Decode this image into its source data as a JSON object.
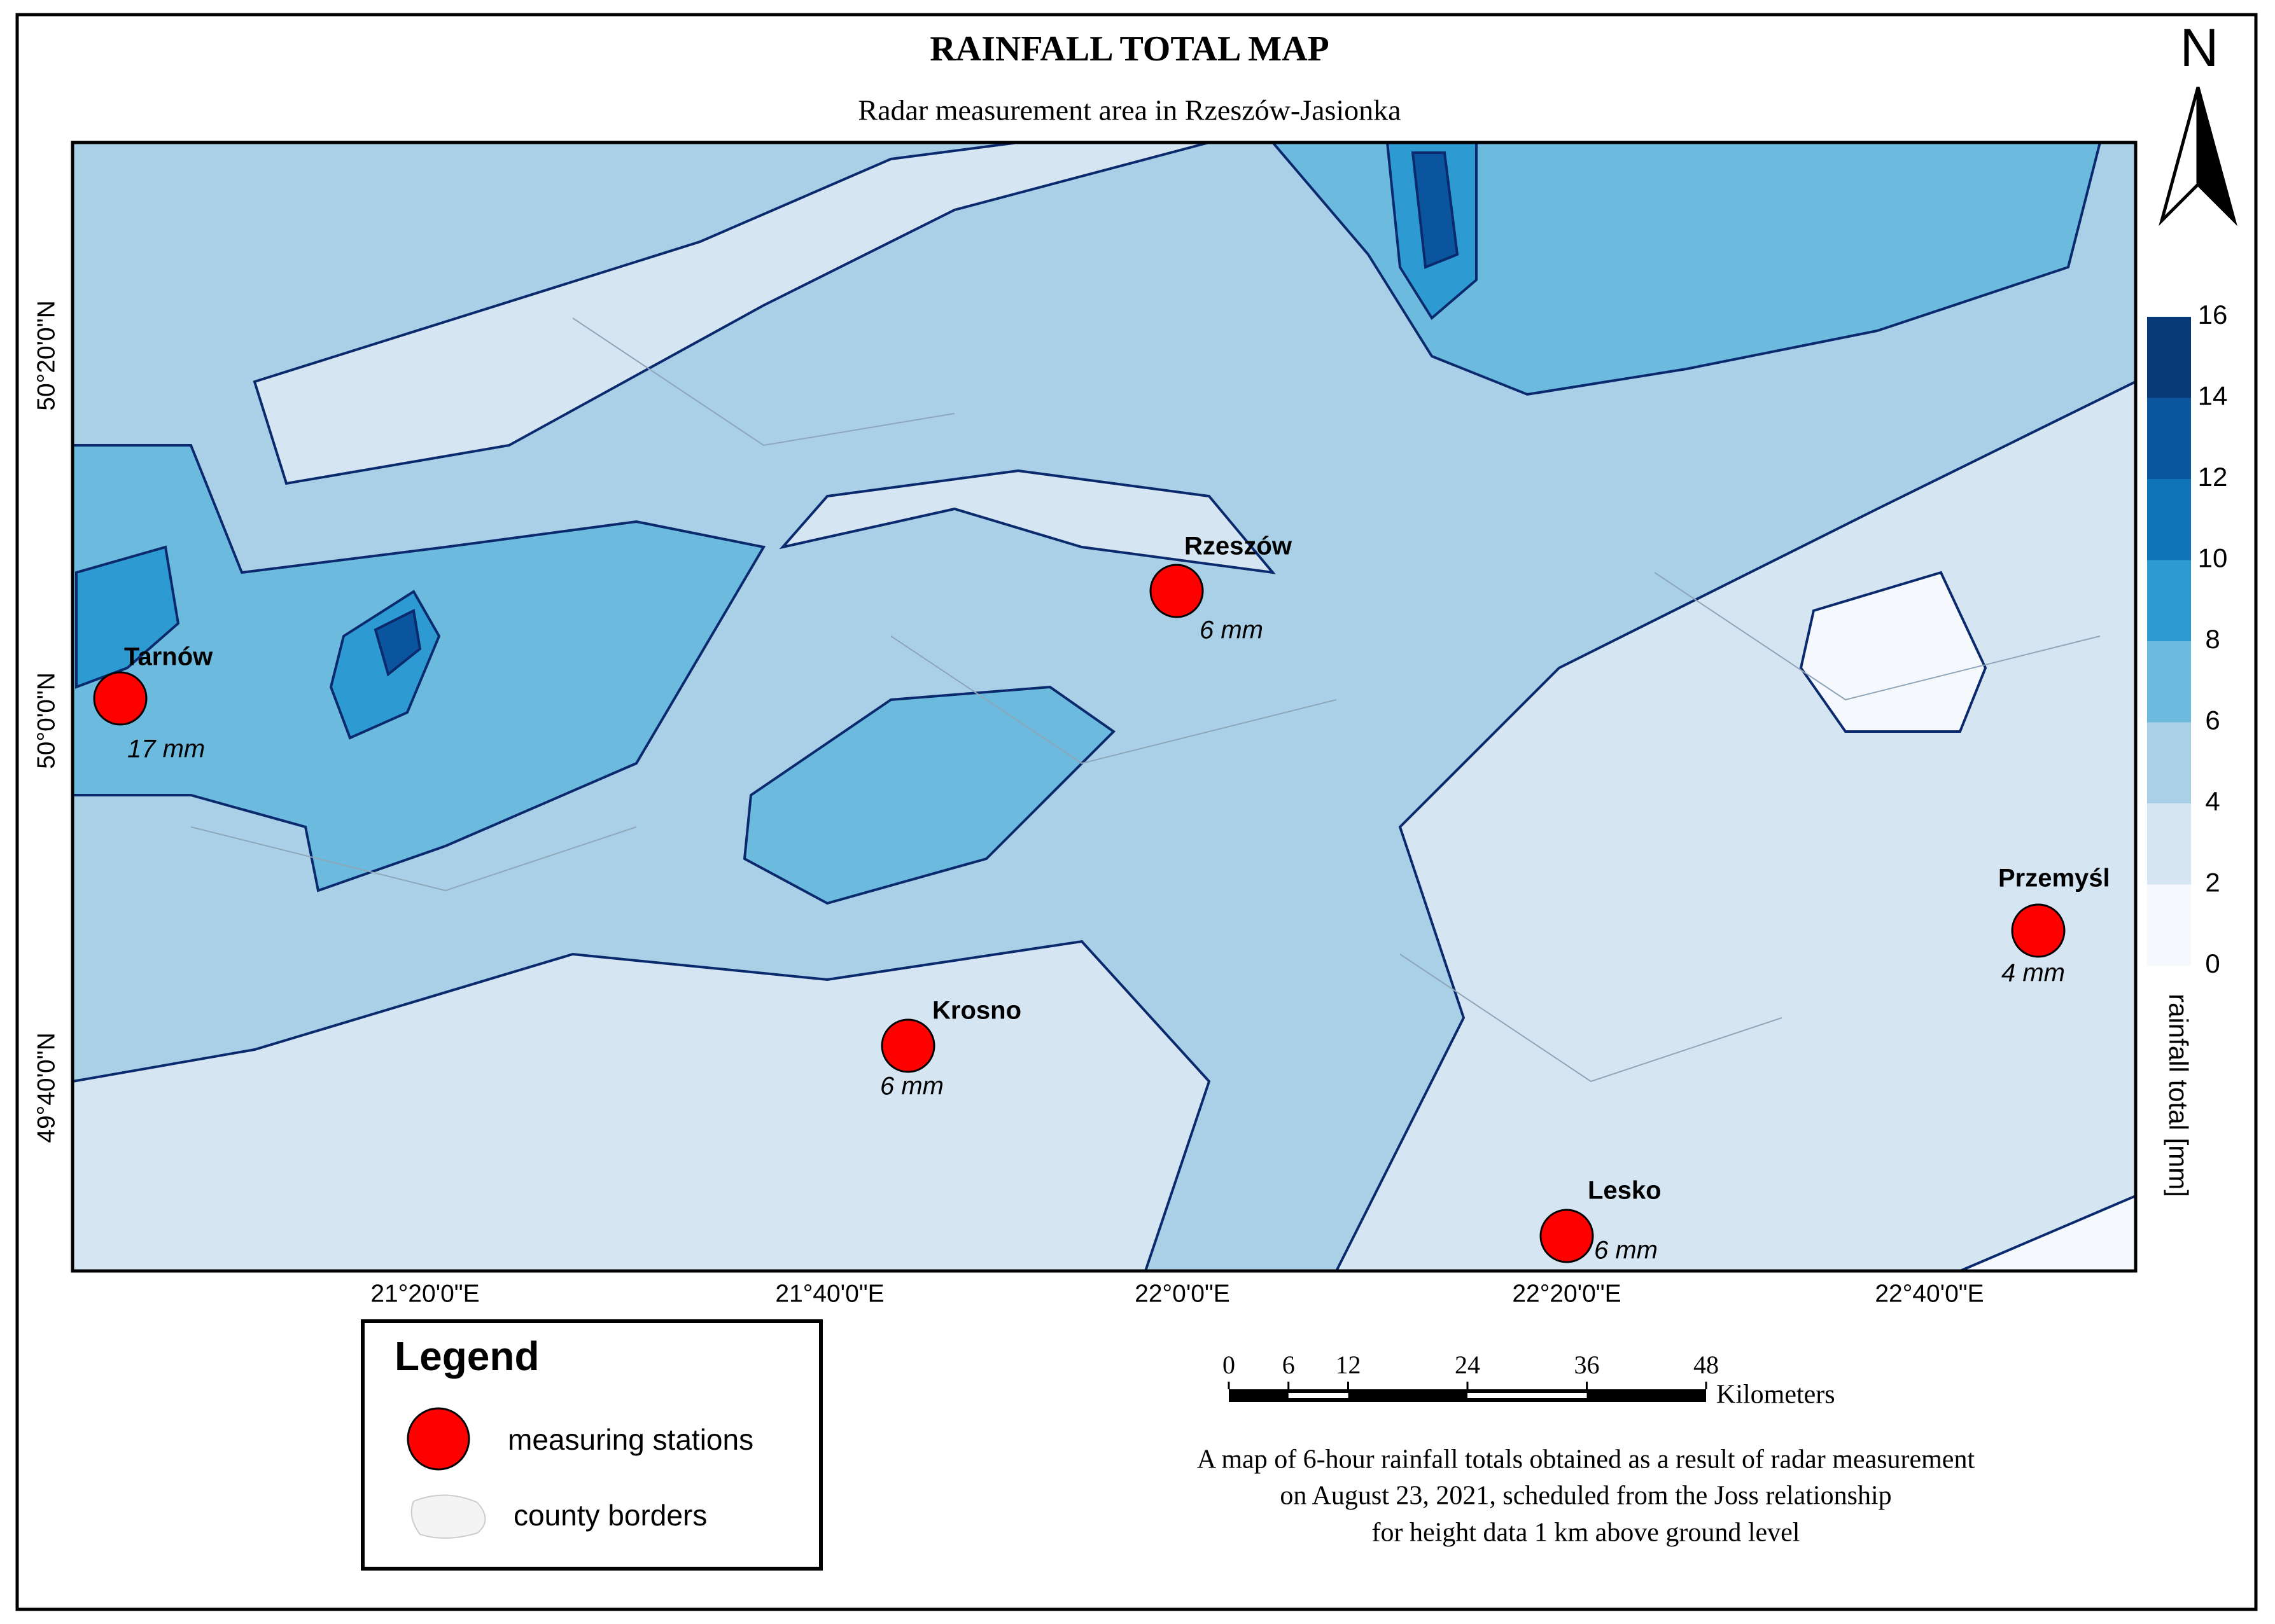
{
  "header": {
    "title": "RAINFALL TOTAL MAP",
    "subtitle": "Radar measurement area in Rzeszów-Jasionka",
    "north": "N"
  },
  "map": {
    "longitude_labels": [
      "21°20'0\"E",
      "21°40'0\"E",
      "22°0'0\"E",
      "22°20'0\"E",
      "22°40'0\"E"
    ],
    "latitude_labels": [
      "50°20'0\"N",
      "50°0'0\"N",
      "49°40'0\"N"
    ]
  },
  "stations": [
    {
      "name": "Tarnów",
      "rainfall": "17 mm"
    },
    {
      "name": "Rzeszów",
      "rainfall": "6 mm"
    },
    {
      "name": "Krosno",
      "rainfall": "6 mm"
    },
    {
      "name": "Lesko",
      "rainfall": "6 mm"
    },
    {
      "name": "Przemyśl",
      "rainfall": "4 mm"
    }
  ],
  "colorbar": {
    "label": "rainfall total [mm]",
    "ticks": [
      0,
      2,
      4,
      6,
      8,
      10,
      12,
      14,
      16
    ],
    "colors": [
      "#f5f8fc",
      "#d5e5f1",
      "#a9d0e6",
      "#6dbadf",
      "#2d9bd2",
      "#0f74b8",
      "#0a559d",
      "#083a78"
    ]
  },
  "scale_bar": {
    "ticks": [
      0,
      6,
      12,
      24,
      36,
      48
    ],
    "unit": "Kilometers"
  },
  "legend": {
    "title": "Legend",
    "items": [
      "measuring stations",
      "county borders"
    ]
  },
  "caption": [
    "A map of 6-hour rainfall totals obtained as a result of radar measurement",
    "on August 23, 2021, scheduled from the Joss relationship",
    "for height data 1 km above ground level"
  ]
}
